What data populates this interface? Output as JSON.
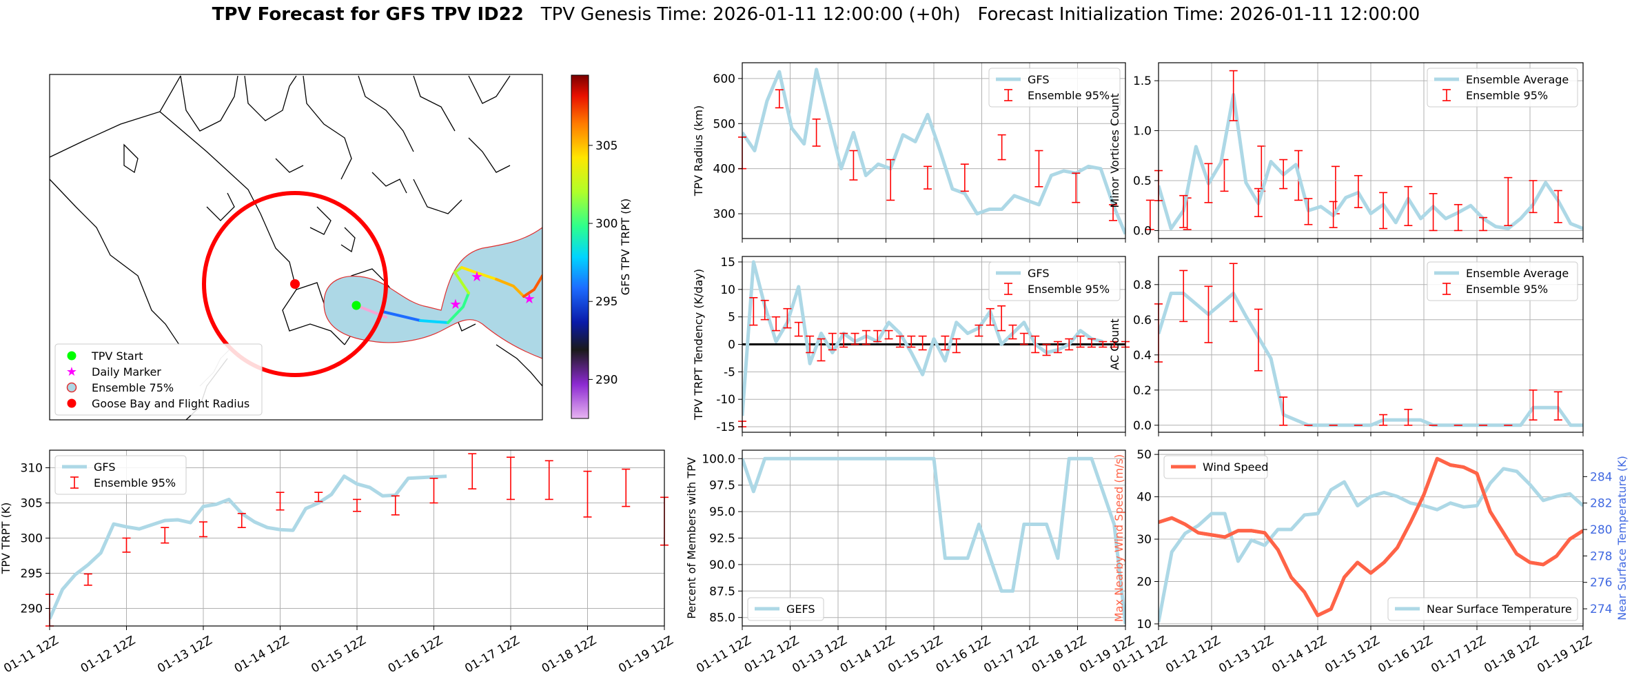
{
  "title": {
    "bold": "TPV Forecast for GFS TPV ID22",
    "rest": "TPV Genesis Time: 2026-01-11 12:00:00 (+0h)   Forecast Initialization Time: 2026-01-11 12:00:00"
  },
  "colors": {
    "gfs_line": "#add8e6",
    "error_bar": "#ff0000",
    "wind": "#ff6347",
    "temp_axis": "#4169e1",
    "grid": "#b0b0b0"
  },
  "map": {
    "colorbar_label": "GFS TPV TRPT (K)",
    "colorbar_ticks": [
      290,
      295,
      300,
      305
    ],
    "colorbar_range": [
      287.5,
      309.5
    ],
    "legend": [
      "TPV Start",
      "Daily Marker",
      "Ensemble 75%",
      "Goose Bay and Flight Radius"
    ]
  },
  "x_tick_labels": [
    "01-11 12Z",
    "01-12 12Z",
    "01-13 12Z",
    "01-14 12Z",
    "01-15 12Z",
    "01-16 12Z",
    "01-17 12Z",
    "01-18 12Z",
    "01-19 12Z"
  ],
  "chart_data": [
    {
      "id": "trpt",
      "type": "line",
      "ylabel": "TPV TRPT (K)",
      "ylim": [
        287.5,
        312.5
      ],
      "yticks": [
        290,
        295,
        300,
        305,
        310
      ],
      "legend": [
        "GFS",
        "Ensemble 95%"
      ],
      "legend_position": "top-left",
      "series": [
        {
          "name": "GFS",
          "values": [
            288.5,
            292.7,
            294.8,
            296.2,
            297.9,
            302.0,
            301.6,
            301.3,
            301.9,
            302.5,
            302.6,
            302.2,
            304.5,
            304.8,
            305.5,
            303.5,
            302.3,
            301.5,
            301.2,
            301.1,
            304.2,
            305.0,
            306.2,
            308.8,
            307.7,
            307.2,
            306.0,
            306.1,
            308.5,
            308.6,
            308.7,
            308.8
          ]
        }
      ],
      "error_bars": [
        {
          "x": 0,
          "low": 287.5,
          "high": 292.0
        },
        {
          "x": 3,
          "low": 293.3,
          "high": 294.9
        },
        {
          "x": 6,
          "low": 298.0,
          "high": 300.0
        },
        {
          "x": 9,
          "low": 299.3,
          "high": 301.5
        },
        {
          "x": 12,
          "low": 300.2,
          "high": 302.3
        },
        {
          "x": 15,
          "low": 301.5,
          "high": 303.5
        },
        {
          "x": 18,
          "low": 304.0,
          "high": 306.5
        },
        {
          "x": 21,
          "low": 305.2,
          "high": 306.5
        },
        {
          "x": 24,
          "low": 303.8,
          "high": 305.5
        },
        {
          "x": 27,
          "low": 303.3,
          "high": 306.0
        },
        {
          "x": 30,
          "low": 305.0,
          "high": 308.5
        },
        {
          "x": 33,
          "low": 307.0,
          "high": 312.0
        },
        {
          "x": 36,
          "low": 305.5,
          "high": 311.5
        },
        {
          "x": 39,
          "low": 305.5,
          "high": 311.0
        },
        {
          "x": 42,
          "low": 303.0,
          "high": 309.5
        },
        {
          "x": 45,
          "low": 304.5,
          "high": 309.8
        },
        {
          "x": 48,
          "low": 299.0,
          "high": 305.8
        }
      ]
    },
    {
      "id": "radius",
      "type": "line",
      "ylabel": "TPV Radius (km)",
      "ylim": [
        245,
        635
      ],
      "yticks": [
        300,
        400,
        500,
        600
      ],
      "legend": [
        "GFS",
        "Ensemble 95%"
      ],
      "legend_position": "top-right",
      "series": [
        {
          "name": "GFS",
          "values": [
            480,
            440,
            550,
            615,
            490,
            455,
            620,
            510,
            400,
            480,
            385,
            410,
            400,
            475,
            460,
            520,
            440,
            355,
            345,
            300,
            310,
            310,
            340,
            330,
            320,
            385,
            395,
            390,
            405,
            400,
            320,
            255
          ]
        }
      ],
      "error_bars": [
        {
          "x": 0,
          "low": 400,
          "high": 470
        },
        {
          "x": 3,
          "low": 535,
          "high": 575
        },
        {
          "x": 6,
          "low": 450,
          "high": 510
        },
        {
          "x": 9,
          "low": 375,
          "high": 440
        },
        {
          "x": 12,
          "low": 330,
          "high": 420
        },
        {
          "x": 15,
          "low": 355,
          "high": 405
        },
        {
          "x": 18,
          "low": 350,
          "high": 410
        },
        {
          "x": 21,
          "low": 420,
          "high": 475
        },
        {
          "x": 24,
          "low": 360,
          "high": 440
        },
        {
          "x": 27,
          "low": 325,
          "high": 390
        },
        {
          "x": 30,
          "low": 285,
          "high": 320
        },
        {
          "x": 33,
          "low": 265,
          "high": 330
        },
        {
          "x": 36,
          "low": 265,
          "high": 335
        },
        {
          "x": 39,
          "low": 350,
          "high": 420
        },
        {
          "x": 42,
          "low": 350,
          "high": 450
        },
        {
          "x": 45,
          "low": 330,
          "high": 440
        },
        {
          "x": 48,
          "low": 300,
          "high": 405
        }
      ]
    },
    {
      "id": "tendency",
      "type": "line",
      "ylabel": "TPV TRPT Tendency (K/day)",
      "ylim": [
        -16,
        16
      ],
      "yticks": [
        -15,
        -10,
        -5,
        0,
        5,
        10,
        15
      ],
      "zero_line": true,
      "legend": [
        "GFS",
        "Ensemble 95%"
      ],
      "legend_position": "top-right",
      "series": [
        {
          "name": "GFS",
          "values": [
            -13,
            15,
            7,
            0.5,
            4,
            10.5,
            -3.5,
            2,
            -1.5,
            2,
            0.5,
            1.5,
            0.5,
            4,
            2,
            -1.5,
            -5.5,
            1,
            -3,
            4,
            2,
            3,
            6,
            0,
            2,
            4,
            0,
            -1.5,
            -1,
            0,
            2.5,
            1,
            0.5
          ]
        }
      ],
      "error_bars": [
        {
          "x": 0,
          "low": -15,
          "high": -14
        },
        {
          "x": 1,
          "low": 3.5,
          "high": 8.5
        },
        {
          "x": 2,
          "low": 4.5,
          "high": 8
        },
        {
          "x": 3,
          "low": 2.5,
          "high": 5
        },
        {
          "x": 4,
          "low": 3,
          "high": 6.5
        },
        {
          "x": 5,
          "low": 1.5,
          "high": 4
        },
        {
          "x": 6,
          "low": -1.5,
          "high": 1.5
        },
        {
          "x": 7,
          "low": -3,
          "high": 1
        },
        {
          "x": 8,
          "low": -1,
          "high": 2
        },
        {
          "x": 9,
          "low": -0.5,
          "high": 2
        },
        {
          "x": 10,
          "low": 0,
          "high": 2
        },
        {
          "x": 11,
          "low": 0,
          "high": 2.5
        },
        {
          "x": 12,
          "low": 0.5,
          "high": 2.5
        },
        {
          "x": 13,
          "low": 1,
          "high": 2.5
        },
        {
          "x": 14,
          "low": -0.5,
          "high": 1.5
        },
        {
          "x": 15,
          "low": -0.5,
          "high": 1.5
        },
        {
          "x": 16,
          "low": -1,
          "high": 1.5
        },
        {
          "x": 18,
          "low": -1,
          "high": 1.5
        },
        {
          "x": 19,
          "low": -1.5,
          "high": 1
        },
        {
          "x": 21,
          "low": 1.5,
          "high": 3.5
        },
        {
          "x": 22,
          "low": 3.5,
          "high": 6.5
        },
        {
          "x": 23,
          "low": 2.5,
          "high": 7
        },
        {
          "x": 24,
          "low": 1,
          "high": 3.5
        },
        {
          "x": 25,
          "low": 0,
          "high": 2
        },
        {
          "x": 26,
          "low": -1.5,
          "high": 1.5
        },
        {
          "x": 27,
          "low": -2,
          "high": 0
        },
        {
          "x": 28,
          "low": -1.5,
          "high": 0.5
        },
        {
          "x": 29,
          "low": -1,
          "high": 1
        },
        {
          "x": 30,
          "low": -0.5,
          "high": 1.5
        },
        {
          "x": 31,
          "low": -0.5,
          "high": 1
        },
        {
          "x": 32,
          "low": -0.5,
          "high": 0.5
        },
        {
          "x": 33,
          "low": -0.5,
          "high": 0.5
        },
        {
          "x": 34,
          "low": -0.5,
          "high": 0.5
        }
      ]
    },
    {
      "id": "members",
      "type": "line",
      "ylabel": "Percent of Members with TPV",
      "ylim": [
        84.2,
        100.8
      ],
      "yticks": [
        85.0,
        87.5,
        90.0,
        92.5,
        95.0,
        97.5,
        100.0
      ],
      "legend": [
        "GEFS"
      ],
      "legend_position": "bottom-left",
      "series": [
        {
          "name": "GEFS",
          "values": [
            100,
            96.9,
            100,
            100,
            100,
            100,
            100,
            100,
            100,
            100,
            100,
            100,
            100,
            100,
            100,
            100,
            100,
            100,
            90.6,
            90.6,
            90.6,
            93.8,
            90.6,
            87.5,
            87.5,
            93.8,
            93.8,
            93.8,
            90.6,
            100,
            100,
            100,
            96.9,
            93.8,
            84.4
          ]
        }
      ]
    },
    {
      "id": "minor",
      "type": "line",
      "ylabel": "Minor Vortices Count",
      "ylim": [
        -0.08,
        1.68
      ],
      "yticks": [
        0.0,
        0.5,
        1.0,
        1.5
      ],
      "legend": [
        "Ensemble Average",
        "Ensemble 95%"
      ],
      "legend_position": "top-right",
      "series": [
        {
          "name": "Ensemble Average",
          "values": [
            0.45,
            0.02,
            0.2,
            0.84,
            0.47,
            0.68,
            1.36,
            0.48,
            0.27,
            0.69,
            0.56,
            0.66,
            0.2,
            0.24,
            0.15,
            0.33,
            0.38,
            0.17,
            0.26,
            0.08,
            0.32,
            0.12,
            0.24,
            0.12,
            0.18,
            0.25,
            0.12,
            0.04,
            0.02,
            0.12,
            0.26,
            0.48,
            0.3,
            0.07,
            0.02
          ]
        }
      ],
      "error_bars": [
        {
          "x": 0,
          "low": 0.3,
          "high": 0.6
        },
        {
          "x": 2,
          "low": 0.03,
          "high": 0.35
        },
        {
          "x": 4,
          "low": 0.28,
          "high": 0.67
        },
        {
          "x": 6,
          "low": 1.1,
          "high": 1.6
        },
        {
          "x": 8,
          "low": 0.14,
          "high": 0.42
        },
        {
          "x": 10,
          "low": 0.42,
          "high": 0.71
        },
        {
          "x": 12,
          "low": 0.06,
          "high": 0.32
        },
        {
          "x": 14,
          "low": 0.03,
          "high": 0.29
        },
        {
          "x": 16,
          "low": 0.23,
          "high": 0.55
        },
        {
          "x": 18,
          "low": 0.02,
          "high": 0.38
        },
        {
          "x": 20,
          "low": 0.05,
          "high": 0.44
        },
        {
          "x": 22,
          "low": 0.0,
          "high": 0.37
        },
        {
          "x": 24,
          "low": 0.0,
          "high": 0.26
        },
        {
          "x": 26,
          "low": 0.0,
          "high": 0.13
        },
        {
          "x": 28,
          "low": 0.05,
          "high": 0.53
        },
        {
          "x": 30,
          "low": 0.18,
          "high": 0.5
        },
        {
          "x": 32,
          "low": 0.08,
          "high": 0.4
        }
      ]
    },
    {
      "id": "ac",
      "type": "line",
      "ylabel": "AC Count",
      "ylim": [
        -0.04,
        0.96
      ],
      "yticks": [
        0.0,
        0.2,
        0.4,
        0.6,
        0.8
      ],
      "legend": [
        "Ensemble Average",
        "Ensemble 95%"
      ],
      "legend_position": "top-right",
      "series": [
        {
          "name": "Ensemble Average",
          "values": [
            0.52,
            0.75,
            0.75,
            0.69,
            0.63,
            0.69,
            0.75,
            0.62,
            0.5,
            0.38,
            0.06,
            0.03,
            0.0,
            0.0,
            0.0,
            0.0,
            0.0,
            0.0,
            0.03,
            0.03,
            0.03,
            0.03,
            0.0,
            0.0,
            0.0,
            0.0,
            0.0,
            0.0,
            0.0,
            0.0,
            0.1,
            0.1,
            0.1,
            0.0,
            0.0
          ]
        }
      ],
      "error_bars": [
        {
          "x": 0,
          "low": 0.36,
          "high": 0.69
        },
        {
          "x": 2,
          "low": 0.59,
          "high": 0.88
        },
        {
          "x": 4,
          "low": 0.47,
          "high": 0.79
        },
        {
          "x": 6,
          "low": 0.59,
          "high": 0.92
        },
        {
          "x": 8,
          "low": 0.31,
          "high": 0.66
        },
        {
          "x": 10,
          "low": 0.0,
          "high": 0.16
        },
        {
          "x": 12,
          "low": 0.0,
          "high": 0.0
        },
        {
          "x": 14,
          "low": 0.0,
          "high": 0.0
        },
        {
          "x": 16,
          "low": 0.0,
          "high": 0.0
        },
        {
          "x": 18,
          "low": 0.0,
          "high": 0.06
        },
        {
          "x": 20,
          "low": 0.0,
          "high": 0.09
        },
        {
          "x": 22,
          "low": 0.0,
          "high": 0.0
        },
        {
          "x": 24,
          "low": 0.0,
          "high": 0.0
        },
        {
          "x": 26,
          "low": 0.0,
          "high": 0.0
        },
        {
          "x": 28,
          "low": 0.0,
          "high": 0.0
        },
        {
          "x": 30,
          "low": 0.03,
          "high": 0.2
        },
        {
          "x": 32,
          "low": 0.03,
          "high": 0.19
        }
      ]
    },
    {
      "id": "wind",
      "type": "line",
      "ylabel": "Max Nearby Wind Speed (m/s)",
      "ylim": [
        9.5,
        51
      ],
      "yticks": [
        10,
        20,
        30,
        40,
        50
      ],
      "legend": [
        "Wind Speed"
      ],
      "legend_position": "top-left",
      "series": [
        {
          "name": "Wind Speed",
          "values": [
            34,
            35,
            33.5,
            31.5,
            31,
            30.5,
            32,
            32,
            31.5,
            27.5,
            21,
            17.5,
            12,
            13.5,
            21,
            24.5,
            22,
            24.5,
            28,
            34,
            40.5,
            49,
            47.5,
            47,
            45.5,
            36.5,
            31.5,
            26.5,
            24.5,
            24,
            26,
            30,
            32
          ]
        }
      ],
      "secondary_axis": {
        "ylabel": "Near Surface Temperature (K)",
        "ylim": [
          272.7,
          286.0
        ],
        "yticks": [
          274,
          276,
          278,
          280,
          282,
          284
        ],
        "legend": [
          "Near Surface Temperature"
        ],
        "legend_position": "bottom-right",
        "series": [
          {
            "name": "Near Surface Temperature",
            "values": [
              273.0,
              278.3,
              279.7,
              280.3,
              281.2,
              281.2,
              277.6,
              279.2,
              278.8,
              280.0,
              280.0,
              281.1,
              281.2,
              283.0,
              283.6,
              281.8,
              282.5,
              282.8,
              282.5,
              282.0,
              281.8,
              281.5,
              282.0,
              281.7,
              281.8,
              283.5,
              284.6,
              284.4,
              283.4,
              282.2,
              282.5,
              282.7,
              281.8
            ]
          }
        ]
      }
    }
  ]
}
